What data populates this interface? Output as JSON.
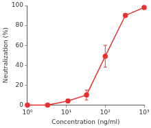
{
  "chart_data": {
    "type": "line",
    "x_label": "Concentration (ng/ml)",
    "y_label": "Neutralization (%)",
    "x": [
      1,
      3.3,
      11,
      33,
      100,
      330,
      1000
    ],
    "values": [
      0,
      0,
      4,
      10,
      49,
      90,
      98
    ],
    "errors": [
      0,
      0,
      1,
      5,
      11,
      2,
      1
    ],
    "color": "#e8312f",
    "marker": "circle",
    "line_style": "solid",
    "log": "x",
    "grid": false,
    "xlim": [
      1,
      1000
    ],
    "xticks": [
      {
        "value": 1,
        "label": "10⁰"
      },
      {
        "value": 10,
        "label": "10¹"
      },
      {
        "value": 100,
        "label": "10²"
      },
      {
        "value": 1000,
        "label": "10³"
      }
    ],
    "ylim": [
      0,
      100
    ],
    "yticks": [
      0,
      20,
      40,
      60,
      80,
      100
    ]
  }
}
